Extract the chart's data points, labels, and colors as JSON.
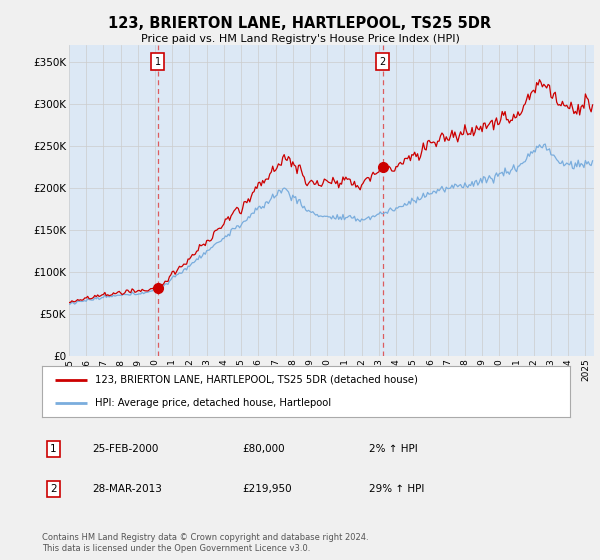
{
  "title": "123, BRIERTON LANE, HARTLEPOOL, TS25 5DR",
  "subtitle": "Price paid vs. HM Land Registry's House Price Index (HPI)",
  "ylabel_ticks": [
    "£0",
    "£50K",
    "£100K",
    "£150K",
    "£200K",
    "£250K",
    "£300K",
    "£350K"
  ],
  "ylim": [
    0,
    370000
  ],
  "xlim_start": 1995.0,
  "xlim_end": 2025.5,
  "line1_color": "#cc0000",
  "line2_color": "#7aaddd",
  "marker1_date": 2000.15,
  "marker1_value": 80000,
  "marker2_date": 2013.23,
  "marker2_value": 219950,
  "legend_line1": "123, BRIERTON LANE, HARTLEPOOL, TS25 5DR (detached house)",
  "legend_line2": "HPI: Average price, detached house, Hartlepool",
  "note1_label": "1",
  "note1_date": "25-FEB-2000",
  "note1_price": "£80,000",
  "note1_hpi": "2% ↑ HPI",
  "note2_label": "2",
  "note2_date": "28-MAR-2013",
  "note2_price": "£219,950",
  "note2_hpi": "29% ↑ HPI",
  "footer": "Contains HM Land Registry data © Crown copyright and database right 2024.\nThis data is licensed under the Open Government Licence v3.0.",
  "background_color": "#f0f0f0",
  "plot_bg_color": "#dce8f5",
  "grid_color": "#cccccc"
}
